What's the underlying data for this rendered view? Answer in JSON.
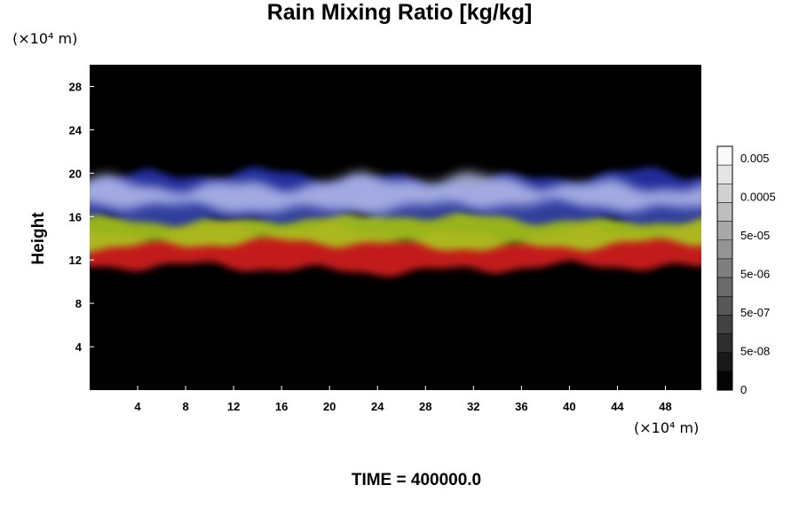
{
  "chart_data": {
    "type": "heatmap",
    "title": "Rain Mixing Ratio [kg/kg]",
    "ylabel": "Height",
    "xlabel": "",
    "x_unit": "(×10⁴ m)",
    "y_unit": "(×10⁴ m)",
    "xlim": [
      0,
      51
    ],
    "ylim": [
      0,
      30
    ],
    "x_ticks": [
      4,
      8,
      12,
      16,
      20,
      24,
      28,
      32,
      36,
      40,
      44,
      48
    ],
    "y_ticks": [
      4,
      8,
      12,
      16,
      20,
      24,
      28
    ],
    "colorbar": {
      "tick_labels": [
        "0.005",
        "0.0005",
        "5e-05",
        "5e-06",
        "5e-07",
        "5e-08",
        "0"
      ],
      "levels": 13
    },
    "background_color": "#000000",
    "layers": [
      {
        "name": "red",
        "color": "#d81c1c",
        "y_bottom": 11.2,
        "y_top": 14.6
      },
      {
        "name": "yellow",
        "color": "#a8c81e",
        "y_bottom": 13.4,
        "y_top": 16.6
      },
      {
        "name": "blue",
        "color": "#2630a8",
        "y_bottom": 15.8,
        "y_top": 19.6
      },
      {
        "name": "light-blue",
        "color": "#b8c0ee",
        "y_bottom": 16.8,
        "y_top": 19.2
      }
    ],
    "footer": "TIME = 400000.0"
  }
}
